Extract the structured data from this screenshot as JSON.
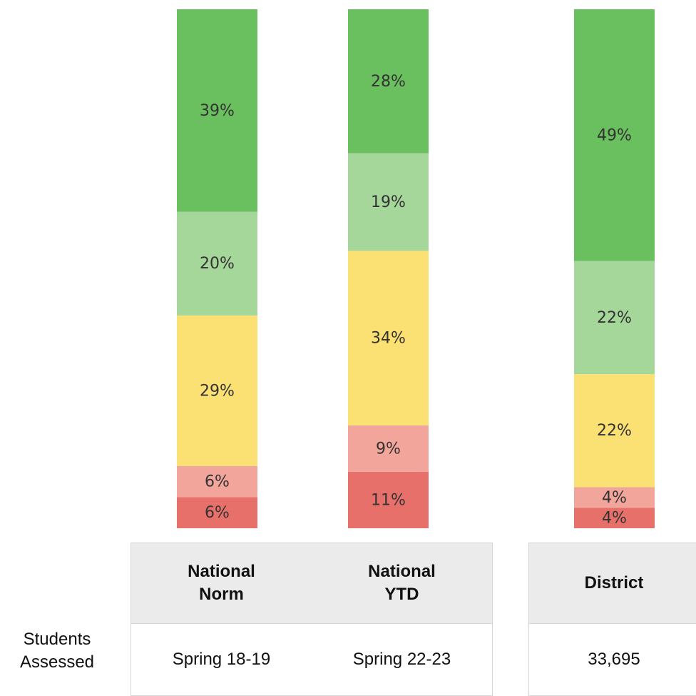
{
  "chart_data": {
    "type": "bar",
    "stacked": true,
    "categories": [
      "National Norm",
      "National YTD",
      "District"
    ],
    "series": [
      {
        "color": "#e8706a",
        "values": [
          6,
          11,
          4
        ]
      },
      {
        "color": "#f2a59b",
        "values": [
          6,
          9,
          4
        ]
      },
      {
        "color": "#fbe074",
        "values": [
          29,
          34,
          22
        ]
      },
      {
        "color": "#a5d69a",
        "values": [
          20,
          19,
          22
        ]
      },
      {
        "color": "#6abf5e",
        "values": [
          39,
          28,
          49
        ]
      }
    ],
    "value_labels": [
      [
        "6%",
        "11%",
        "4%"
      ],
      [
        "6%",
        "9%",
        "4%"
      ],
      [
        "29%",
        "34%",
        "22%"
      ],
      [
        "20%",
        "19%",
        "22%"
      ],
      [
        "39%",
        "28%",
        "49%"
      ]
    ]
  },
  "table": {
    "row_label": "Students Assessed",
    "cells": [
      "Spring 18-19",
      "Spring 22-23",
      "33,695"
    ]
  }
}
